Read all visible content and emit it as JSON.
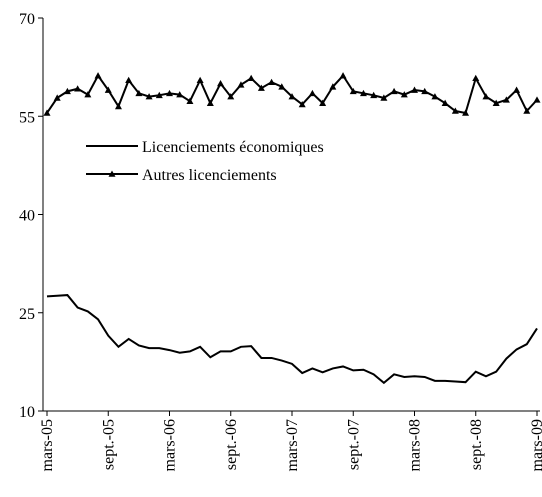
{
  "chart_data": {
    "type": "line",
    "categories": [
      "mars-05",
      null,
      null,
      null,
      null,
      null,
      "sept.-05",
      null,
      null,
      null,
      null,
      null,
      "mars-06",
      null,
      null,
      null,
      null,
      null,
      "sept.-06",
      null,
      null,
      null,
      null,
      null,
      "mars-07",
      null,
      null,
      null,
      null,
      null,
      "sept.-07",
      null,
      null,
      null,
      null,
      null,
      "mars-08",
      null,
      null,
      null,
      null,
      null,
      "sept.-08",
      null,
      null,
      null,
      null,
      null,
      "mars-09"
    ],
    "series": [
      {
        "name": "Licenciements économiques",
        "color": "#000000",
        "marker": "none",
        "values": [
          27.5,
          27.6,
          27.7,
          25.8,
          25.2,
          24,
          21.5,
          19.8,
          21,
          20,
          19.6,
          19.6,
          19.3,
          18.9,
          19.1,
          19.8,
          18.2,
          19.1,
          19.1,
          19.8,
          19.9,
          18.1,
          18.1,
          17.7,
          17.2,
          15.8,
          16.5,
          15.9,
          16.5,
          16.8,
          16.2,
          16.3,
          15.6,
          14.3,
          15.6,
          15.2,
          15.3,
          15.2,
          14.6,
          14.6,
          14.5,
          14.4,
          16,
          15.3,
          16,
          18,
          19.4,
          20.2,
          22.6
        ]
      },
      {
        "name": "Autres licenciements",
        "color": "#000000",
        "marker": "triangle",
        "values": [
          55.5,
          57.8,
          58.8,
          59.2,
          58.3,
          61.2,
          59,
          56.5,
          60.5,
          58.5,
          58,
          58.2,
          58.5,
          58.3,
          57.3,
          60.5,
          57,
          60,
          58,
          59.8,
          60.8,
          59.3,
          60.2,
          59.5,
          58,
          56.8,
          58.5,
          57,
          59.5,
          61.2,
          58.8,
          58.5,
          58.2,
          57.8,
          58.8,
          58.3,
          59,
          58.8,
          58,
          57,
          55.8,
          55.5,
          60.8,
          58,
          57,
          57.5,
          59,
          55.8,
          57.5
        ]
      }
    ],
    "ylim": [
      10,
      70
    ],
    "yticks": [
      10,
      25,
      40,
      55,
      70
    ],
    "grid": false,
    "legend": "upper-left"
  }
}
